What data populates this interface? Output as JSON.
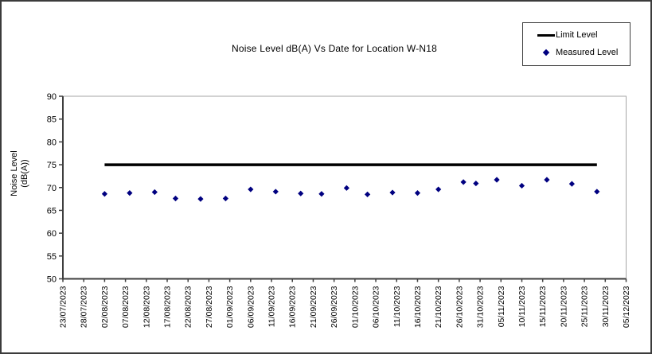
{
  "window": {
    "background_color": "#ffffff",
    "border_color": "#3b3b3b"
  },
  "chart_data": {
    "type": "scatter",
    "title": "Noise Level dB(A) Vs Date for Location W-N18",
    "xlabel": "",
    "ylabel": "Noise Level (dB(A))",
    "ylabel_lines": [
      "Noise Level",
      "(dB(A))"
    ],
    "ylim": [
      50,
      90
    ],
    "y_tick_step": 5,
    "grid": false,
    "legend_position": "top-right",
    "x_axis_start_date": "23/07/2023",
    "x_axis_end_date": "05/12/2023",
    "x_tick_labels": [
      "23/07/2023",
      "28/07/2023",
      "02/08/2023",
      "07/08/2023",
      "12/08/2023",
      "17/08/2023",
      "22/08/2023",
      "27/08/2023",
      "01/09/2023",
      "06/09/2023",
      "11/09/2023",
      "16/09/2023",
      "21/09/2023",
      "26/09/2023",
      "01/10/2023",
      "06/10/2023",
      "11/10/2023",
      "16/10/2023",
      "21/10/2023",
      "26/10/2023",
      "31/10/2023",
      "05/11/2023",
      "10/11/2023",
      "15/11/2023",
      "20/11/2023",
      "25/11/2023",
      "30/11/2023",
      "05/12/2023"
    ],
    "series": [
      {
        "name": "Limit Level",
        "type": "line",
        "color": "#000000",
        "points": [
          {
            "date": "02/08/2023",
            "value": 75
          },
          {
            "date": "28/11/2023",
            "value": 75
          }
        ]
      },
      {
        "name": "Measured Level",
        "type": "scatter",
        "marker": "diamond",
        "color": "#000080",
        "points": [
          {
            "date": "02/08/2023",
            "value": 68.6
          },
          {
            "date": "08/08/2023",
            "value": 68.8
          },
          {
            "date": "14/08/2023",
            "value": 69.0
          },
          {
            "date": "19/08/2023",
            "value": 67.6
          },
          {
            "date": "25/08/2023",
            "value": 67.5
          },
          {
            "date": "31/08/2023",
            "value": 67.6
          },
          {
            "date": "06/09/2023",
            "value": 69.6
          },
          {
            "date": "12/09/2023",
            "value": 69.1
          },
          {
            "date": "18/09/2023",
            "value": 68.7
          },
          {
            "date": "23/09/2023",
            "value": 68.6
          },
          {
            "date": "29/09/2023",
            "value": 69.9
          },
          {
            "date": "04/10/2023",
            "value": 68.5
          },
          {
            "date": "10/10/2023",
            "value": 68.9
          },
          {
            "date": "16/10/2023",
            "value": 68.8
          },
          {
            "date": "21/10/2023",
            "value": 69.6
          },
          {
            "date": "27/10/2023",
            "value": 71.2
          },
          {
            "date": "30/10/2023",
            "value": 70.9
          },
          {
            "date": "04/11/2023",
            "value": 71.7
          },
          {
            "date": "10/11/2023",
            "value": 70.4
          },
          {
            "date": "16/11/2023",
            "value": 71.7
          },
          {
            "date": "22/11/2023",
            "value": 70.8
          },
          {
            "date": "28/11/2023",
            "value": 69.1
          }
        ]
      }
    ]
  }
}
